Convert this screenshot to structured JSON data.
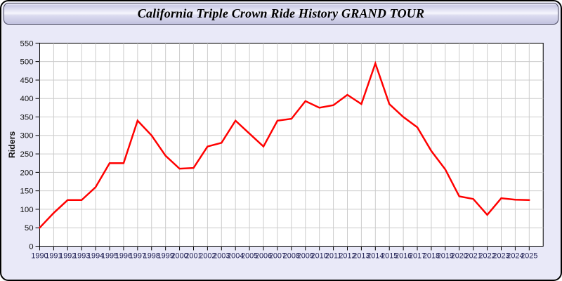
{
  "window": {
    "title": "California Triple Crown Ride History GRAND TOUR",
    "colors": {
      "frame_background": "#e9e9f8",
      "frame_border": "#000000",
      "titlebar_border": "#46465e"
    }
  },
  "chart_data": {
    "type": "line",
    "title": "California Triple Crown Ride History GRAND TOUR",
    "xlabel": "",
    "ylabel": "Riders",
    "x": [
      1990,
      1991,
      1992,
      1993,
      1994,
      1995,
      1996,
      1997,
      1998,
      1999,
      2000,
      2001,
      2002,
      2003,
      2004,
      2005,
      2006,
      2007,
      2008,
      2009,
      2010,
      2011,
      2012,
      2013,
      2014,
      2015,
      2016,
      2017,
      2018,
      2019,
      2020,
      2021,
      2022,
      2023,
      2024,
      2025
    ],
    "series": [
      {
        "name": "Riders",
        "color": "#ff0000",
        "values": [
          50,
          90,
          125,
          125,
          160,
          225,
          225,
          340,
          300,
          245,
          210,
          212,
          270,
          280,
          340,
          305,
          270,
          340,
          345,
          393,
          375,
          382,
          410,
          385,
          495,
          385,
          350,
          322,
          258,
          208,
          135,
          128,
          85,
          130,
          126,
          125
        ]
      }
    ],
    "ylim": [
      0,
      550
    ],
    "ytick_step": 50,
    "grid": true,
    "legend": "none",
    "colors": {
      "plot_background": "#ffffff",
      "plot_border": "#000000",
      "gridline": "#cccccc",
      "tick": "#000000",
      "y_tick_label": "#111111",
      "x_tick_label": "#222255",
      "axis_title": "#111111"
    }
  }
}
